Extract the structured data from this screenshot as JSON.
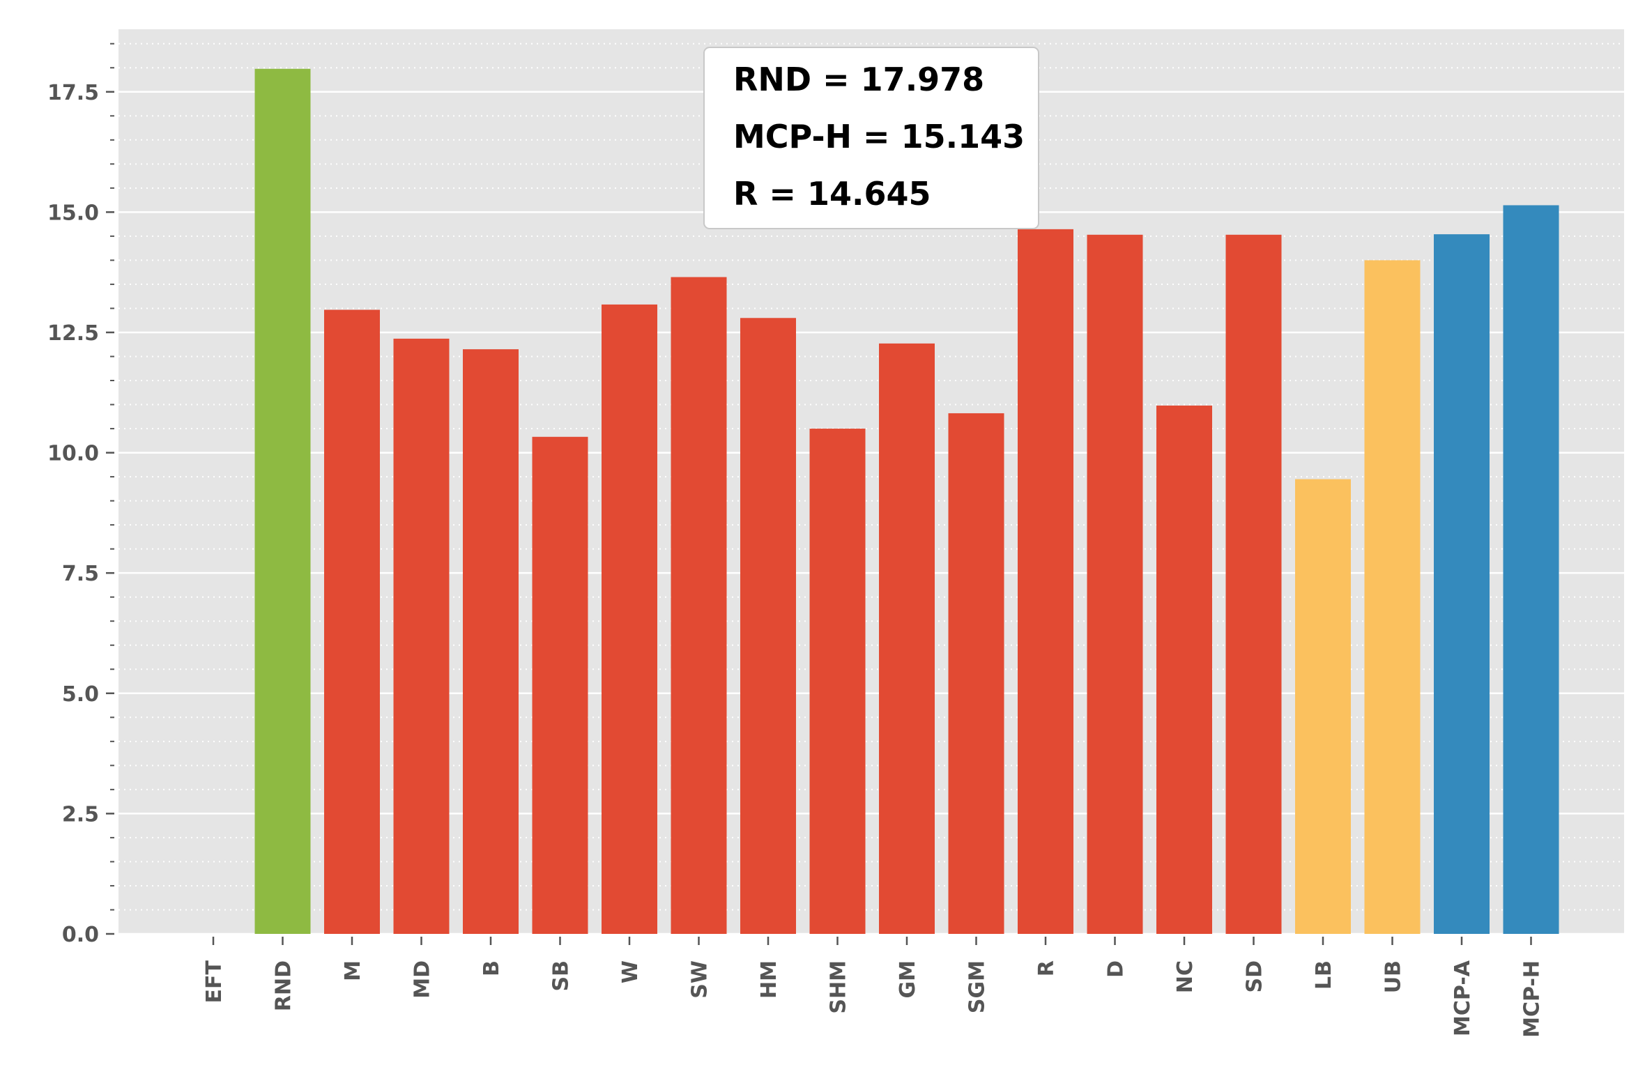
{
  "chart_data": {
    "type": "bar",
    "title": "",
    "xlabel": "",
    "ylabel": "",
    "categories": [
      "EFT",
      "RND",
      "M",
      "MD",
      "B",
      "SB",
      "W",
      "SW",
      "HM",
      "SHM",
      "GM",
      "SGM",
      "R",
      "D",
      "NC",
      "SD",
      "LB",
      "UB",
      "MCP-A",
      "MCP-H"
    ],
    "values": [
      0.0,
      17.978,
      12.97,
      12.37,
      12.15,
      10.33,
      13.08,
      13.65,
      12.8,
      10.5,
      12.27,
      10.82,
      14.645,
      14.53,
      10.98,
      14.53,
      9.45,
      14.0,
      14.54,
      15.143
    ],
    "colors": [
      "#8eba42",
      "#8eba42",
      "#e24a33",
      "#e24a33",
      "#e24a33",
      "#e24a33",
      "#e24a33",
      "#e24a33",
      "#e24a33",
      "#e24a33",
      "#e24a33",
      "#e24a33",
      "#e24a33",
      "#e24a33",
      "#e24a33",
      "#e24a33",
      "#fbc15e",
      "#fbc15e",
      "#348abd",
      "#348abd"
    ],
    "ylim": [
      0,
      18.8
    ],
    "yticks": [
      0.0,
      2.5,
      5.0,
      7.5,
      10.0,
      12.5,
      15.0,
      17.5
    ],
    "ytick_labels": [
      "0.0",
      "2.5",
      "5.0",
      "7.5",
      "10.0",
      "12.5",
      "15.0",
      "17.5"
    ],
    "minor_tick_step": 0.5,
    "grid": true,
    "background_color": "#e5e5e5",
    "annotation": {
      "lines": [
        "RND = 17.978",
        "MCP-H = 15.143",
        "R = 14.645"
      ],
      "placement": "top-center"
    }
  }
}
